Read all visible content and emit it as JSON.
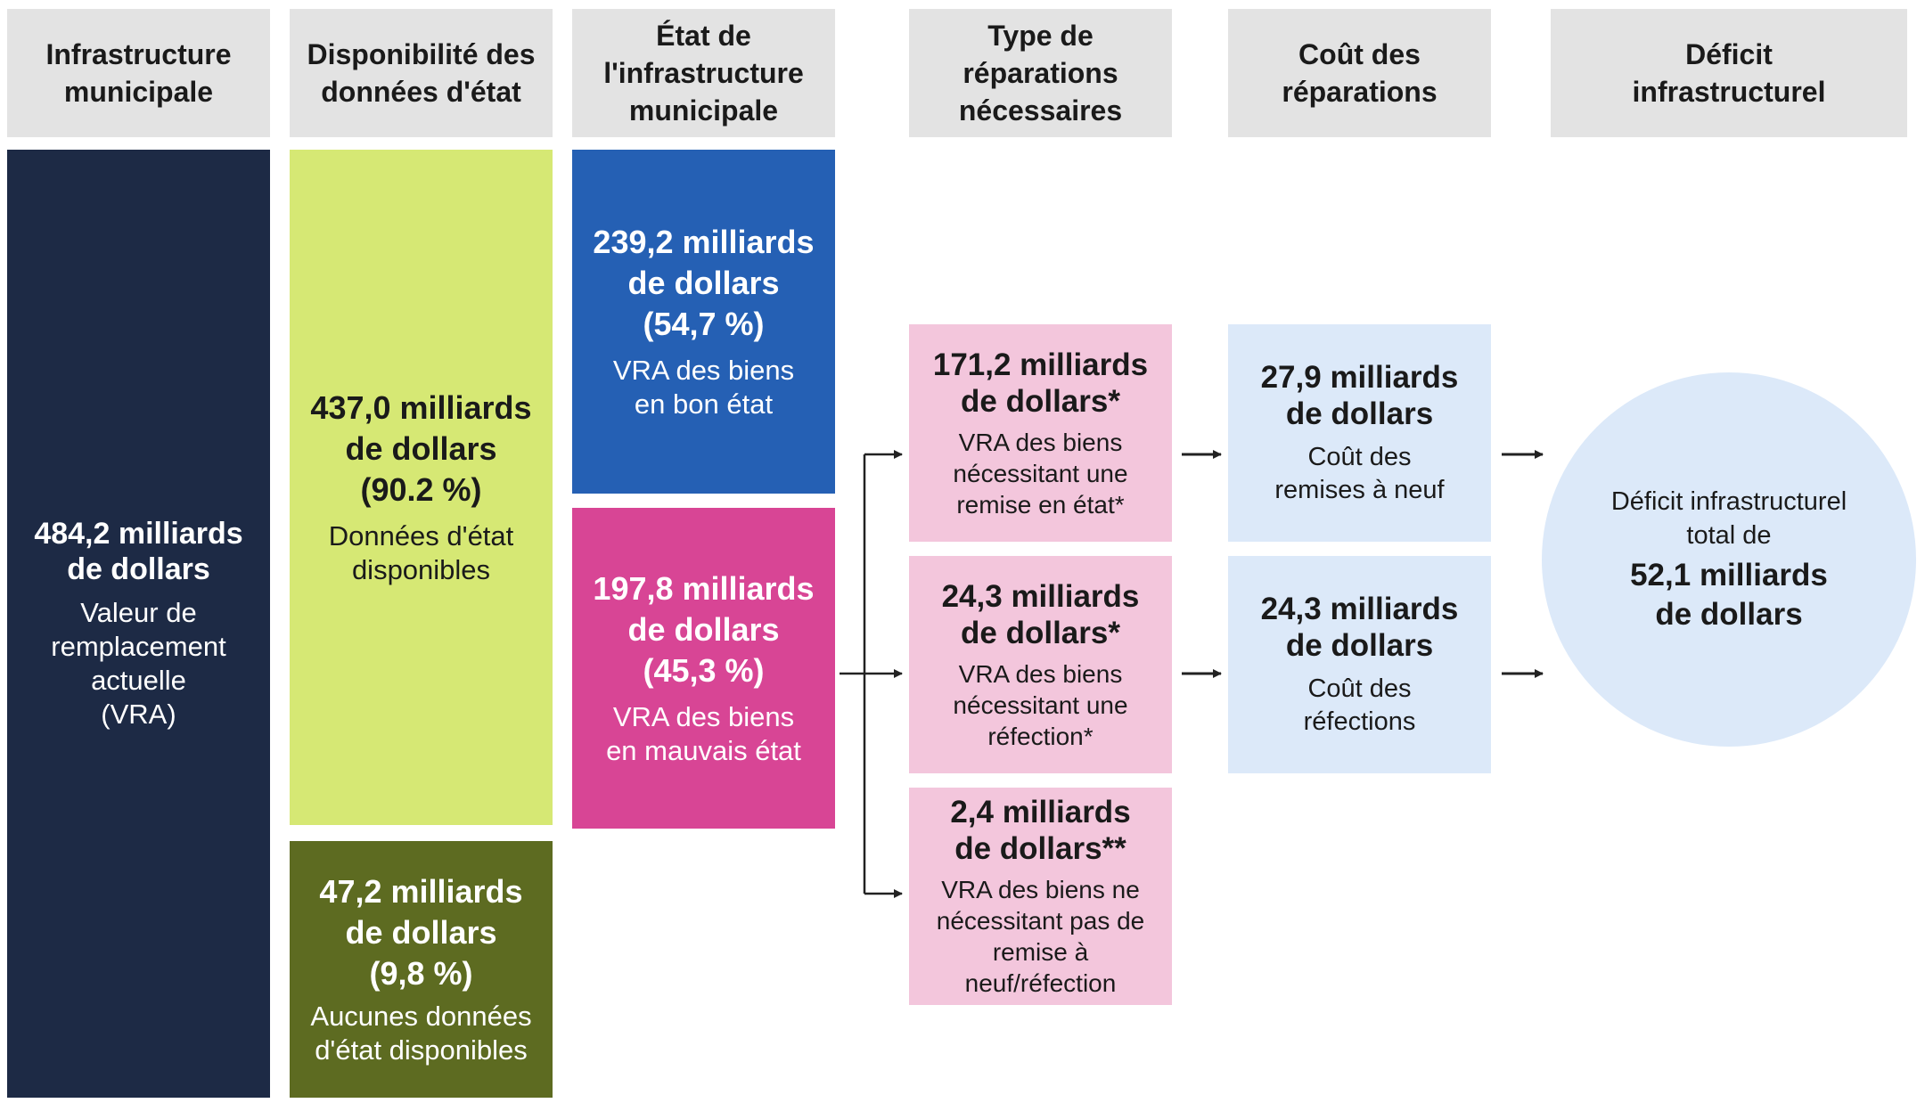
{
  "headers": {
    "col1": "Infrastructure\nmunicipale",
    "col2": "Disponibilité des\ndonnées d'état",
    "col3": "État de\nl'infrastructure\nmunicipale",
    "col4": "Type de\nréparations\nnécessaires",
    "col5": "Coût des\nréparations",
    "col6": "Déficit\ninfrastructurel"
  },
  "total": {
    "amount": "484,2 milliards\nde dollars",
    "label": "Valeur de\nremplacement\nactuelle\n(VRA)"
  },
  "data_available": {
    "amount": "437,0 milliards\nde dollars\n(90.2 %)",
    "label": "Données d'état\ndisponibles"
  },
  "no_data": {
    "amount": "47,2 milliards\nde dollars\n(9,8 %)",
    "label": "Aucunes données\nd'état disponibles"
  },
  "good_state": {
    "amount": "239,2 milliards\nde dollars\n(54,7 %)",
    "label": "VRA des biens\nen bon état"
  },
  "bad_state": {
    "amount": "197,8 milliards\nde dollars\n(45,3 %)",
    "label": "VRA des biens\nen mauvais état"
  },
  "repairs": [
    {
      "amount": "171,2 milliards\nde dollars*",
      "label": "VRA des biens\nnécessitant une\nremise en état*"
    },
    {
      "amount": "24,3 milliards\nde dollars*",
      "label": "VRA des biens\nnécessitant une\nréfection*"
    },
    {
      "amount": "2,4 milliards\nde dollars**",
      "label": "VRA des biens ne\nnécessitant pas de\nremise à neuf/réfection"
    }
  ],
  "costs": [
    {
      "amount": "27,9 milliards\nde dollars",
      "label": "Coût des\nremises à neuf"
    },
    {
      "amount": "24,3 milliards\nde dollars",
      "label": "Coût des\nréfections"
    }
  ],
  "deficit": {
    "label": "Déficit infrastructurel\ntotal de",
    "amount": "52,1 milliards\nde dollars"
  },
  "colors": {
    "navy": "#1d2a45",
    "lime": "#d6e874",
    "olive": "#5d6b21",
    "blue": "#2560b4",
    "magenta": "#d84595",
    "pink": "#f3c6dc",
    "lightblue": "#dce9f9",
    "header": "#e3e3e3"
  }
}
